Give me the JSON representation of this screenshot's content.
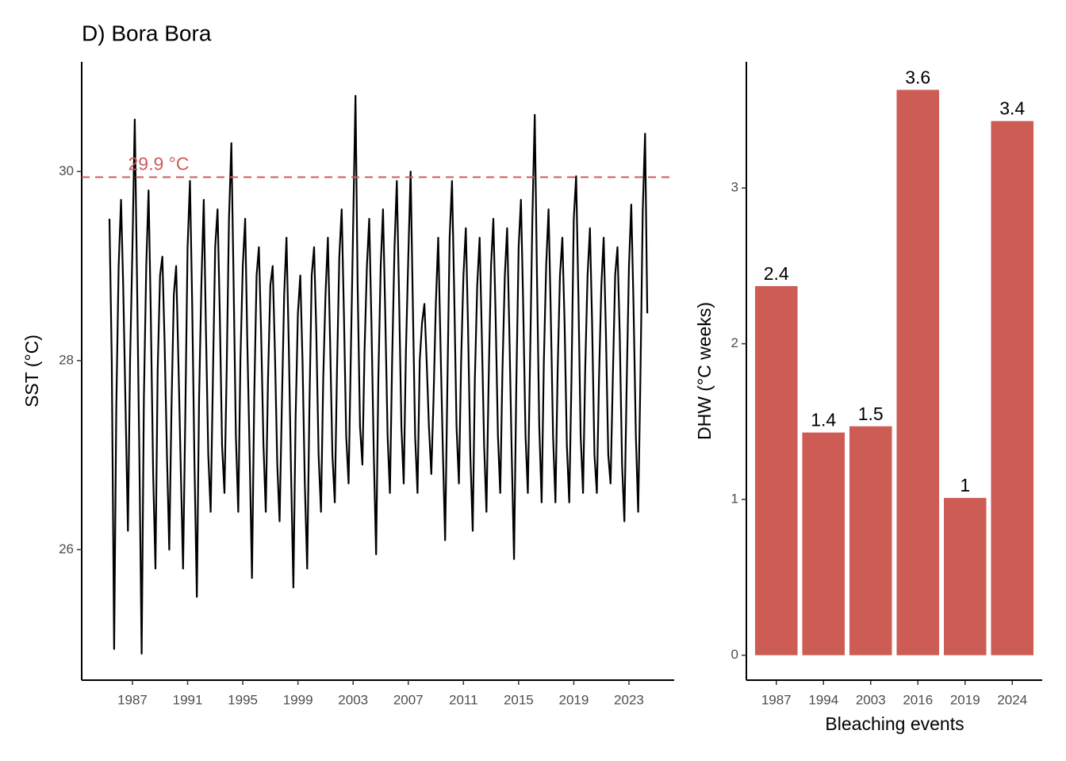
{
  "chart_data": [
    {
      "type": "line",
      "title": "D) Bora Bora",
      "ylabel": "SST (°C)",
      "color": "#000000",
      "x": [
        1985.33,
        1985.5,
        1985.67,
        1985.83,
        1986,
        1986.17,
        1986.33,
        1986.5,
        1986.67,
        1986.83,
        1987,
        1987.17,
        1987.33,
        1987.5,
        1987.67,
        1987.83,
        1988,
        1988.17,
        1988.33,
        1988.5,
        1988.67,
        1988.83,
        1989,
        1989.17,
        1989.33,
        1989.5,
        1989.67,
        1989.83,
        1990,
        1990.17,
        1990.33,
        1990.5,
        1990.67,
        1990.83,
        1991,
        1991.17,
        1991.33,
        1991.5,
        1991.67,
        1991.83,
        1992,
        1992.17,
        1992.33,
        1992.5,
        1992.67,
        1992.83,
        1993,
        1993.17,
        1993.33,
        1993.5,
        1993.67,
        1993.83,
        1994,
        1994.17,
        1994.33,
        1994.5,
        1994.67,
        1994.83,
        1995,
        1995.17,
        1995.33,
        1995.5,
        1995.67,
        1995.83,
        1996,
        1996.17,
        1996.33,
        1996.5,
        1996.67,
        1996.83,
        1997,
        1997.17,
        1997.33,
        1997.5,
        1997.67,
        1997.83,
        1998,
        1998.17,
        1998.33,
        1998.5,
        1998.67,
        1998.83,
        1999,
        1999.17,
        1999.33,
        1999.5,
        1999.67,
        1999.83,
        2000,
        2000.17,
        2000.33,
        2000.5,
        2000.67,
        2000.83,
        2001,
        2001.17,
        2001.33,
        2001.5,
        2001.67,
        2001.83,
        2002,
        2002.17,
        2002.33,
        2002.5,
        2002.67,
        2002.83,
        2003,
        2003.17,
        2003.33,
        2003.5,
        2003.67,
        2003.83,
        2004,
        2004.17,
        2004.33,
        2004.5,
        2004.67,
        2004.83,
        2005,
        2005.17,
        2005.33,
        2005.5,
        2005.67,
        2005.83,
        2006,
        2006.17,
        2006.33,
        2006.5,
        2006.67,
        2006.83,
        2007,
        2007.17,
        2007.33,
        2007.5,
        2007.67,
        2007.83,
        2008,
        2008.17,
        2008.33,
        2008.5,
        2008.67,
        2008.83,
        2009,
        2009.17,
        2009.33,
        2009.5,
        2009.67,
        2009.83,
        2010,
        2010.17,
        2010.33,
        2010.5,
        2010.67,
        2010.83,
        2011,
        2011.17,
        2011.33,
        2011.5,
        2011.67,
        2011.83,
        2012,
        2012.17,
        2012.33,
        2012.5,
        2012.67,
        2012.83,
        2013,
        2013.17,
        2013.33,
        2013.5,
        2013.67,
        2013.83,
        2014,
        2014.17,
        2014.33,
        2014.5,
        2014.67,
        2014.83,
        2015,
        2015.17,
        2015.33,
        2015.5,
        2015.67,
        2015.83,
        2016,
        2016.17,
        2016.33,
        2016.5,
        2016.67,
        2016.83,
        2017,
        2017.17,
        2017.33,
        2017.5,
        2017.67,
        2017.83,
        2018,
        2018.17,
        2018.33,
        2018.5,
        2018.67,
        2018.83,
        2019,
        2019.17,
        2019.33,
        2019.5,
        2019.67,
        2019.83,
        2020,
        2020.17,
        2020.33,
        2020.5,
        2020.67,
        2020.83,
        2021,
        2021.17,
        2021.33,
        2021.5,
        2021.67,
        2021.83,
        2022,
        2022.17,
        2022.33,
        2022.5,
        2022.67,
        2022.83,
        2023,
        2023.17,
        2023.33,
        2023.5,
        2023.67,
        2023.83,
        2024,
        2024.17,
        2024.33
      ],
      "values": [
        29.5,
        28.0,
        24.95,
        27.5,
        29.0,
        29.7,
        28.8,
        27.5,
        26.2,
        28.0,
        29.2,
        30.55,
        28.9,
        27.0,
        24.9,
        27.6,
        29.0,
        29.8,
        28.5,
        26.8,
        25.8,
        27.9,
        28.9,
        29.1,
        28.2,
        27.0,
        26.0,
        27.5,
        28.7,
        29.0,
        28.0,
        26.9,
        25.8,
        27.4,
        29.2,
        29.9,
        28.6,
        26.9,
        25.5,
        27.6,
        28.8,
        29.7,
        28.3,
        27.0,
        26.4,
        27.8,
        29.2,
        29.6,
        28.5,
        27.1,
        26.6,
        27.9,
        29.5,
        30.3,
        28.9,
        27.2,
        26.4,
        28.0,
        29.0,
        29.5,
        28.2,
        27.0,
        25.7,
        27.6,
        28.9,
        29.2,
        28.3,
        27.1,
        26.4,
        27.8,
        28.8,
        29.0,
        28.1,
        26.9,
        26.3,
        27.5,
        28.7,
        29.3,
        28.2,
        26.8,
        25.6,
        27.4,
        28.5,
        28.9,
        28.0,
        26.7,
        25.8,
        27.5,
        28.9,
        29.2,
        28.3,
        27.0,
        26.4,
        27.8,
        28.7,
        29.3,
        28.2,
        27.0,
        26.5,
        27.9,
        29.1,
        29.6,
        28.5,
        27.2,
        26.7,
        28.0,
        29.4,
        30.8,
        28.8,
        27.3,
        26.9,
        28.1,
        29.0,
        29.5,
        28.4,
        27.0,
        25.95,
        27.8,
        29.0,
        29.6,
        28.5,
        27.2,
        26.6,
        28.0,
        29.2,
        29.9,
        28.7,
        27.3,
        26.7,
        28.1,
        29.1,
        30.0,
        28.6,
        27.2,
        26.6,
        28.0,
        28.4,
        28.6,
        28.0,
        27.3,
        26.8,
        27.6,
        28.6,
        29.3,
        28.2,
        27.1,
        26.1,
        27.7,
        29.3,
        29.9,
        28.7,
        27.3,
        26.7,
        28.0,
        28.9,
        29.4,
        28.4,
        27.0,
        26.2,
        27.8,
        28.8,
        29.3,
        28.3,
        27.1,
        26.4,
        27.8,
        29.0,
        29.5,
        28.5,
        27.2,
        26.6,
        27.9,
        28.9,
        29.4,
        28.3,
        27.0,
        25.9,
        27.7,
        29.2,
        29.7,
        28.6,
        27.2,
        26.6,
        28.0,
        29.5,
        30.6,
        28.9,
        27.3,
        26.5,
        28.0,
        29.0,
        29.6,
        28.5,
        27.2,
        26.5,
        27.9,
        28.9,
        29.3,
        28.4,
        27.1,
        26.5,
        27.8,
        29.5,
        29.95,
        28.7,
        27.2,
        26.6,
        27.9,
        28.9,
        29.4,
        28.4,
        27.0,
        26.6,
        27.8,
        28.8,
        29.3,
        28.3,
        27.0,
        26.7,
        27.8,
        28.9,
        29.2,
        28.3,
        26.9,
        26.3,
        27.7,
        29.0,
        29.65,
        28.6,
        27.2,
        26.4,
        27.8,
        29.6,
        30.4,
        28.5
      ],
      "hline": {
        "value": 29.94,
        "label": "29.9 °C",
        "color": "#cd5c5c"
      },
      "xlim": [
        1983.32,
        2026.28
      ],
      "xticks": [
        1987,
        1991,
        1995,
        1999,
        2003,
        2007,
        2011,
        2015,
        2019,
        2023
      ],
      "ylim": [
        24.62,
        31.16
      ],
      "yticks": [
        26,
        28,
        30
      ]
    },
    {
      "type": "bar",
      "xlabel": "Bleaching events",
      "ylabel": "DHW (°C weeks)",
      "color": "#cd5c55",
      "categories": [
        "1987",
        "1994",
        "2003",
        "2016",
        "2019",
        "2024"
      ],
      "values": [
        2.37,
        1.43,
        1.47,
        3.63,
        1.01,
        3.43
      ],
      "value_labels": [
        "2.4",
        "1.4",
        "1.5",
        "3.6",
        "1",
        "3.4"
      ],
      "ylim": [
        -0.16,
        3.81
      ],
      "yticks": [
        0,
        1,
        2,
        3
      ]
    }
  ]
}
